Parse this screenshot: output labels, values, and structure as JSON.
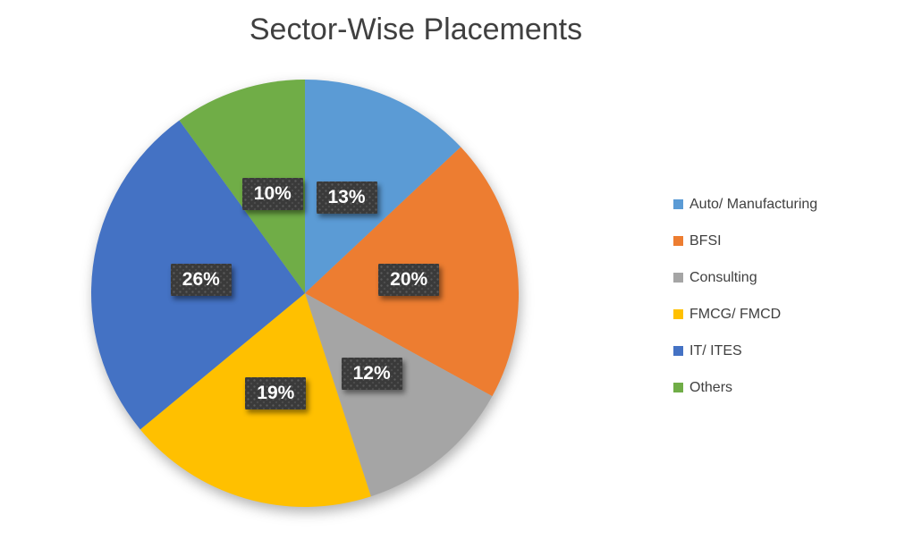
{
  "title": "Sector-Wise Placements",
  "chart_data": {
    "type": "pie",
    "title": "Sector-Wise Placements",
    "categories": [
      "Auto/ Manufacturing",
      "BFSI",
      "Consulting",
      "FMCG/ FMCD",
      "IT/ ITES",
      "Others"
    ],
    "values": [
      13,
      20,
      12,
      19,
      26,
      10
    ],
    "value_labels": [
      "13%",
      "20%",
      "12%",
      "19%",
      "26%",
      "10%"
    ],
    "colors": [
      "#5b9bd5",
      "#ed7d31",
      "#a5a5a5",
      "#ffc000",
      "#4472c4",
      "#70ad47"
    ],
    "start_angle_deg": 0,
    "direction": "clockwise",
    "legend_position": "right",
    "data_label_style": {
      "bg": "#3a3a3a",
      "text": "#ffffff"
    }
  },
  "legend": {
    "items": [
      {
        "label": "Auto/ Manufacturing",
        "color": "#5b9bd5"
      },
      {
        "label": "BFSI",
        "color": "#ed7d31"
      },
      {
        "label": "Consulting",
        "color": "#a5a5a5"
      },
      {
        "label": "FMCG/ FMCD",
        "color": "#ffc000"
      },
      {
        "label": "IT/ ITES",
        "color": "#4472c4"
      },
      {
        "label": "Others",
        "color": "#70ad47"
      }
    ]
  }
}
